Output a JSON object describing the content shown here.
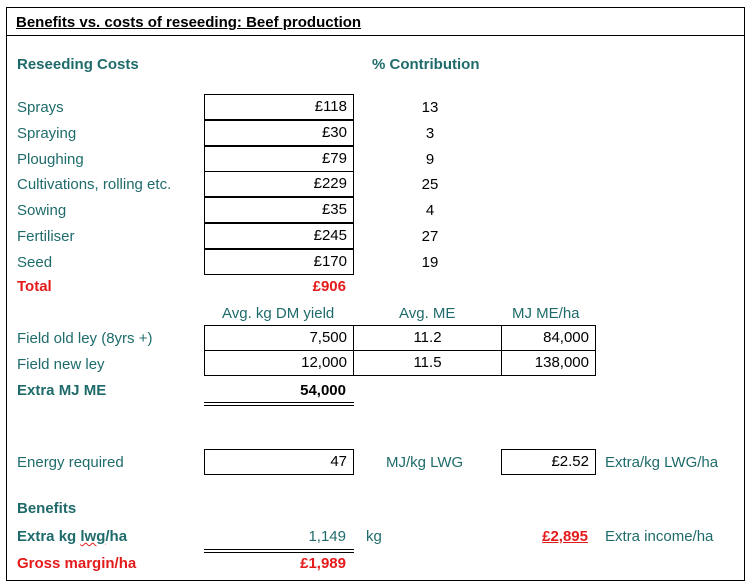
{
  "title": "Benefits vs. costs of reseeding: Beef production",
  "costs": {
    "heading": "Reseeding Costs",
    "contribution_heading": "% Contribution",
    "rows": [
      {
        "label": "Sprays",
        "cost": "£118",
        "pct": "13"
      },
      {
        "label": "Spraying",
        "cost": "£30",
        "pct": "3"
      },
      {
        "label": "Ploughing",
        "cost": "£79",
        "pct": "9"
      },
      {
        "label": "Cultivations, rolling etc.",
        "cost": "£229",
        "pct": "25"
      },
      {
        "label": "Sowing",
        "cost": "£35",
        "pct": "4"
      },
      {
        "label": "Fertiliser",
        "cost": "£245",
        "pct": "27"
      },
      {
        "label": "Seed",
        "cost": "£170",
        "pct": "19"
      }
    ],
    "total_label": "Total",
    "total_value": "£906"
  },
  "yield": {
    "headers": [
      "Avg. kg DM yield",
      "Avg. ME",
      "MJ ME/ha"
    ],
    "rows": [
      {
        "label": "Field old ley (8yrs +)",
        "dm": "7,500",
        "me": "11.2",
        "mjha": "84,000"
      },
      {
        "label": "Field new ley",
        "dm": "12,000",
        "me": "11.5",
        "mjha": "138,000"
      }
    ],
    "extra_label": "Extra MJ ME",
    "extra_value": "54,000"
  },
  "energy": {
    "label": "Energy required",
    "value": "47",
    "unit": "MJ/kg LWG",
    "cost_value": "£2.52",
    "cost_unit": "Extra/kg LWG/ha"
  },
  "benefits": {
    "heading": "Benefits",
    "extra_kg_label_a": "Extra kg ",
    "extra_kg_label_b": "lwg",
    "extra_kg_label_c": "/ha",
    "extra_kg_value": "1,149",
    "extra_kg_unit": "kg",
    "income_value": "£2,895",
    "income_label": "Extra income/ha",
    "gross_label": "Gross margin/ha",
    "gross_value": "£1,989"
  }
}
